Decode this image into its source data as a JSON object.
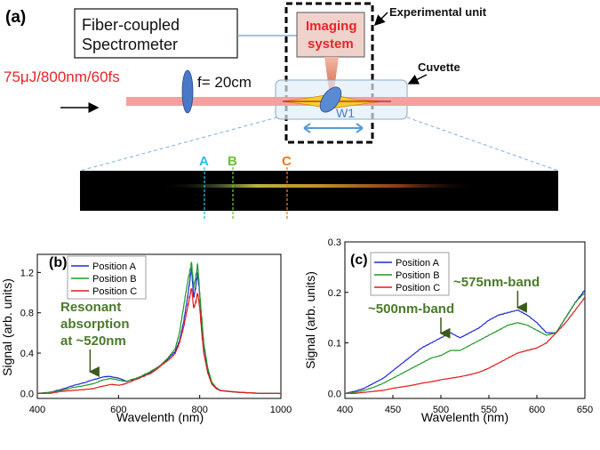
{
  "schematic": {
    "panel_label": "(a)",
    "spectrometer_line1": "Fiber-coupled",
    "spectrometer_line2": "Spectrometer",
    "imaging_line1": "Imaging",
    "imaging_line2": "system",
    "experimental_unit": "Experimental unit",
    "cuvette": "Cuvette",
    "laser_label": "75μJ/800nm/60fs",
    "lens_label": "f= 20cm",
    "window_label": "W1",
    "positions": [
      {
        "label": "A",
        "color": "#2fb8e6"
      },
      {
        "label": "B",
        "color": "#6cbf3a"
      },
      {
        "label": "C",
        "color": "#e87722"
      }
    ],
    "colors": {
      "laser": "#f4a0a0",
      "laser_text": "#e8252a",
      "imaging_text": "#e8252a",
      "annotation_green": "#4a7a2a"
    }
  },
  "chart_data": [
    {
      "type": "line",
      "panel_label": "(b)",
      "xlabel": "Wavelenth (nm)",
      "ylabel": "Signal (arb. units)",
      "xlim": [
        400,
        1000
      ],
      "ylim": [
        -0.05,
        1.38
      ],
      "xticks": [
        "400",
        "600",
        "800",
        "1000"
      ],
      "yticks": [
        "0.0",
        "0.4",
        "0.8",
        "1.2"
      ],
      "legend": "top-left",
      "annotation": [
        "Resonant",
        "absorption",
        "at ~520nm"
      ],
      "annotation_arrow_x": 530,
      "series": [
        {
          "name": "Position A",
          "color": "#1f2bd6",
          "x": [
            400,
            430,
            460,
            490,
            520,
            540,
            560,
            580,
            600,
            620,
            650,
            680,
            700,
            720,
            740,
            750,
            760,
            770,
            775,
            780,
            785,
            790,
            795,
            800,
            805,
            810,
            820,
            830,
            840,
            850,
            870,
            900,
            950,
            1000
          ],
          "y": [
            0.0,
            0.01,
            0.04,
            0.08,
            0.11,
            0.14,
            0.16,
            0.17,
            0.15,
            0.12,
            0.15,
            0.21,
            0.27,
            0.33,
            0.42,
            0.52,
            0.7,
            0.95,
            1.1,
            1.25,
            0.95,
            1.05,
            1.2,
            0.98,
            0.7,
            0.48,
            0.22,
            0.1,
            0.05,
            0.03,
            0.02,
            0.01,
            0.0,
            0.0
          ]
        },
        {
          "name": "Position B",
          "color": "#1f9a2a",
          "x": [
            400,
            430,
            460,
            490,
            520,
            540,
            560,
            580,
            600,
            620,
            650,
            680,
            700,
            720,
            740,
            750,
            760,
            770,
            775,
            780,
            785,
            790,
            795,
            800,
            805,
            810,
            820,
            830,
            840,
            850,
            870,
            900,
            950,
            1000
          ],
          "y": [
            0.0,
            0.01,
            0.03,
            0.06,
            0.08,
            0.1,
            0.13,
            0.15,
            0.13,
            0.12,
            0.16,
            0.22,
            0.27,
            0.34,
            0.45,
            0.6,
            0.85,
            1.1,
            1.2,
            1.3,
            1.05,
            1.15,
            1.28,
            1.0,
            0.75,
            0.5,
            0.25,
            0.11,
            0.06,
            0.03,
            0.02,
            0.01,
            0.0,
            0.0
          ]
        },
        {
          "name": "Position C",
          "color": "#e01b1b",
          "x": [
            400,
            430,
            460,
            490,
            520,
            540,
            560,
            580,
            600,
            620,
            650,
            680,
            700,
            720,
            740,
            750,
            760,
            770,
            775,
            780,
            785,
            790,
            795,
            800,
            805,
            810,
            820,
            830,
            840,
            850,
            870,
            900,
            950,
            1000
          ],
          "y": [
            0.0,
            0.0,
            0.02,
            0.03,
            0.04,
            0.05,
            0.07,
            0.09,
            0.08,
            0.1,
            0.15,
            0.2,
            0.26,
            0.32,
            0.4,
            0.5,
            0.65,
            0.85,
            0.95,
            1.05,
            0.85,
            0.9,
            1.0,
            0.85,
            0.6,
            0.4,
            0.2,
            0.09,
            0.05,
            0.03,
            0.02,
            0.01,
            0.0,
            0.0
          ]
        }
      ]
    },
    {
      "type": "line",
      "panel_label": "(c)",
      "xlabel": "Wavelenth (nm)",
      "ylabel": "Signal (arb. units)",
      "xlim": [
        400,
        650
      ],
      "ylim": [
        -0.01,
        0.3
      ],
      "xticks": [
        "400",
        "450",
        "500",
        "550",
        "600",
        "650"
      ],
      "yticks": [
        "0.0",
        "0.1",
        "0.2",
        "0.3"
      ],
      "legend": "top-left",
      "annotations": [
        {
          "text": "~500nm-band",
          "arrow_x": 500,
          "arrow_y": 0.112
        },
        {
          "text": "~575nm-band",
          "arrow_x": 580,
          "arrow_y": 0.163
        }
      ],
      "series": [
        {
          "name": "Position A",
          "color": "#1f2bd6",
          "x": [
            400,
            410,
            420,
            430,
            440,
            450,
            460,
            470,
            480,
            490,
            500,
            510,
            520,
            530,
            540,
            550,
            560,
            570,
            580,
            590,
            600,
            610,
            620,
            630,
            640,
            650
          ],
          "y": [
            0.0,
            0.004,
            0.01,
            0.02,
            0.03,
            0.045,
            0.06,
            0.075,
            0.09,
            0.1,
            0.11,
            0.12,
            0.11,
            0.12,
            0.13,
            0.145,
            0.155,
            0.16,
            0.165,
            0.155,
            0.14,
            0.12,
            0.12,
            0.15,
            0.18,
            0.205
          ]
        },
        {
          "name": "Position B",
          "color": "#1f9a2a",
          "x": [
            400,
            410,
            420,
            430,
            440,
            450,
            460,
            470,
            480,
            490,
            500,
            510,
            520,
            530,
            540,
            550,
            560,
            570,
            580,
            590,
            600,
            610,
            620,
            630,
            640,
            650
          ],
          "y": [
            0.0,
            0.002,
            0.006,
            0.012,
            0.02,
            0.03,
            0.04,
            0.05,
            0.06,
            0.07,
            0.075,
            0.085,
            0.085,
            0.095,
            0.105,
            0.115,
            0.125,
            0.135,
            0.14,
            0.135,
            0.125,
            0.115,
            0.12,
            0.15,
            0.18,
            0.2
          ]
        },
        {
          "name": "Position C",
          "color": "#e01b1b",
          "x": [
            400,
            410,
            420,
            430,
            440,
            450,
            460,
            470,
            480,
            490,
            500,
            510,
            520,
            530,
            540,
            550,
            560,
            570,
            580,
            590,
            600,
            610,
            620,
            630,
            640,
            650
          ],
          "y": [
            0.0,
            0.0,
            0.002,
            0.004,
            0.006,
            0.01,
            0.013,
            0.016,
            0.02,
            0.023,
            0.027,
            0.03,
            0.033,
            0.037,
            0.042,
            0.05,
            0.06,
            0.07,
            0.08,
            0.085,
            0.09,
            0.1,
            0.12,
            0.14,
            0.165,
            0.19
          ]
        }
      ]
    }
  ]
}
